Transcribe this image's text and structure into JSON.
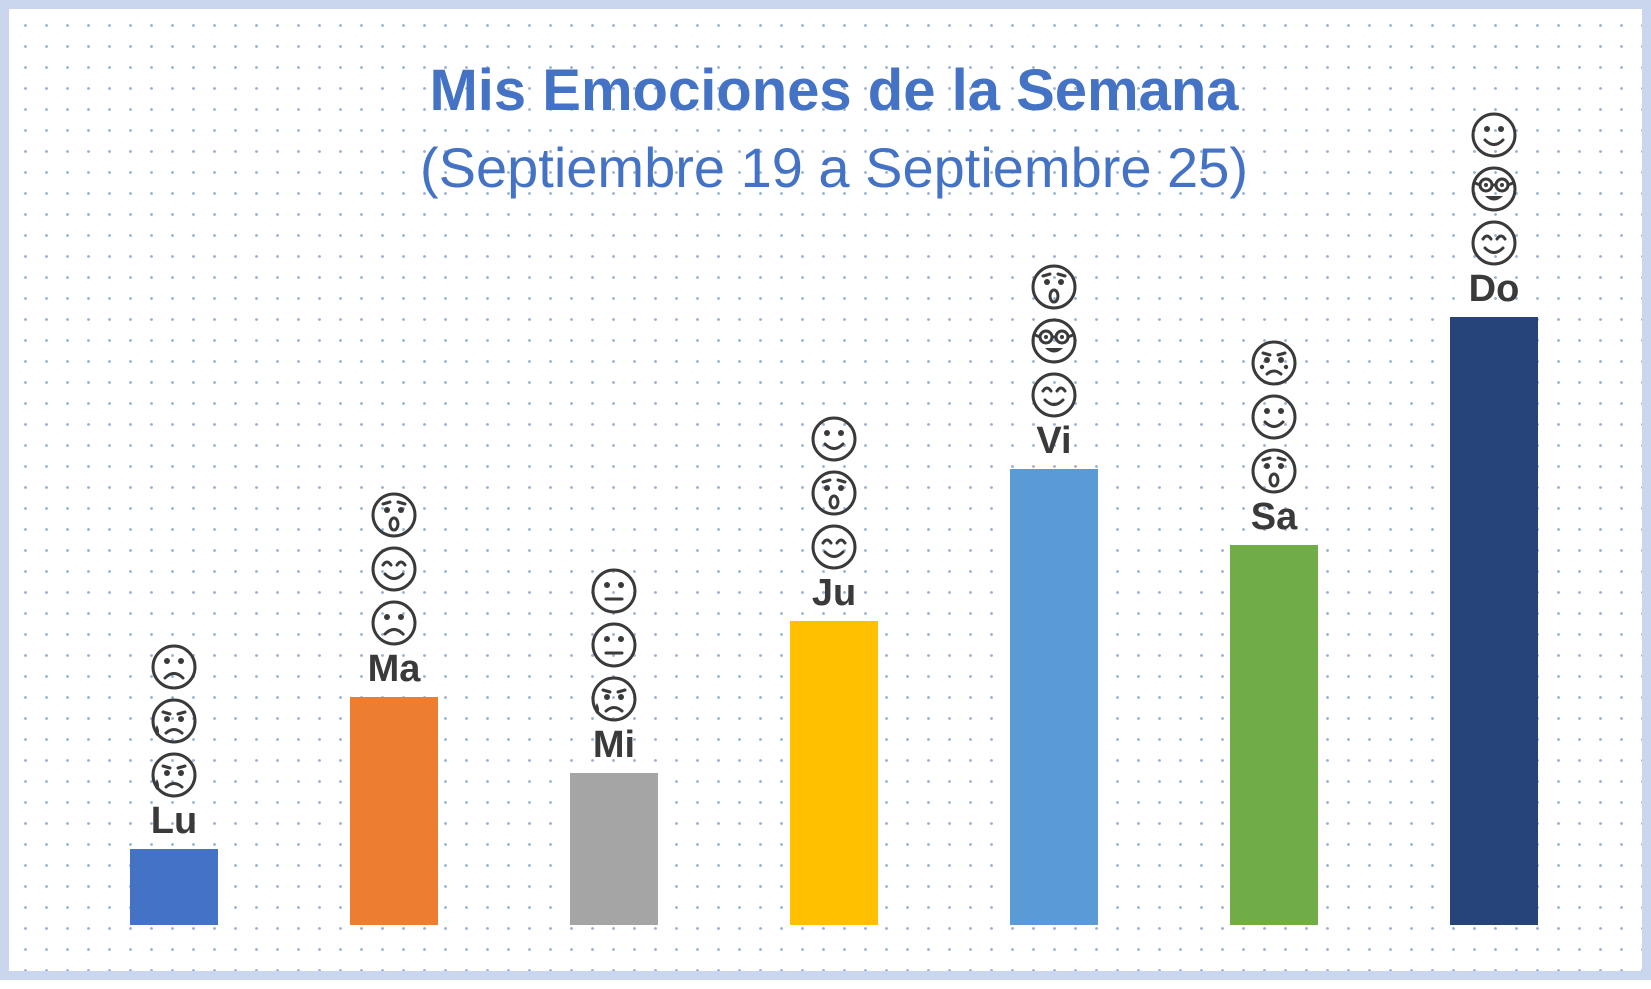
{
  "chart_data": {
    "type": "bar",
    "title": "Mis Emociones de la Semana",
    "subtitle": "(Septiembre 19 a Septiembre 25)",
    "categories": [
      "Lu",
      "Ma",
      "Mi",
      "Ju",
      "Vi",
      "Sa",
      "Do"
    ],
    "values": [
      1,
      3,
      2,
      4,
      6,
      5,
      8
    ],
    "colors": [
      "#4472c4",
      "#ed7d31",
      "#a5a5a5",
      "#ffc000",
      "#5b9bd5",
      "#70ad47",
      "#264478"
    ],
    "emotions": [
      [
        "sad-face-icon",
        "crying-face-icon",
        "crying-face-icon"
      ],
      [
        "surprised-face-icon",
        "smiling-eyes-face-icon",
        "sad-face-icon"
      ],
      [
        "neutral-face-icon",
        "neutral-face-icon",
        "crying-face-icon"
      ],
      [
        "happy-face-icon",
        "surprised-face-icon",
        "smiling-eyes-face-icon"
      ],
      [
        "surprised-face-icon",
        "nerd-face-icon",
        "smiling-eyes-face-icon"
      ],
      [
        "worried-face-icon",
        "happy-face-icon",
        "surprised-face-icon"
      ],
      [
        "happy-face-icon",
        "nerd-face-icon",
        "smiling-eyes-face-icon"
      ]
    ],
    "ylim": [
      0,
      8
    ],
    "grid": false,
    "legend": "none"
  }
}
